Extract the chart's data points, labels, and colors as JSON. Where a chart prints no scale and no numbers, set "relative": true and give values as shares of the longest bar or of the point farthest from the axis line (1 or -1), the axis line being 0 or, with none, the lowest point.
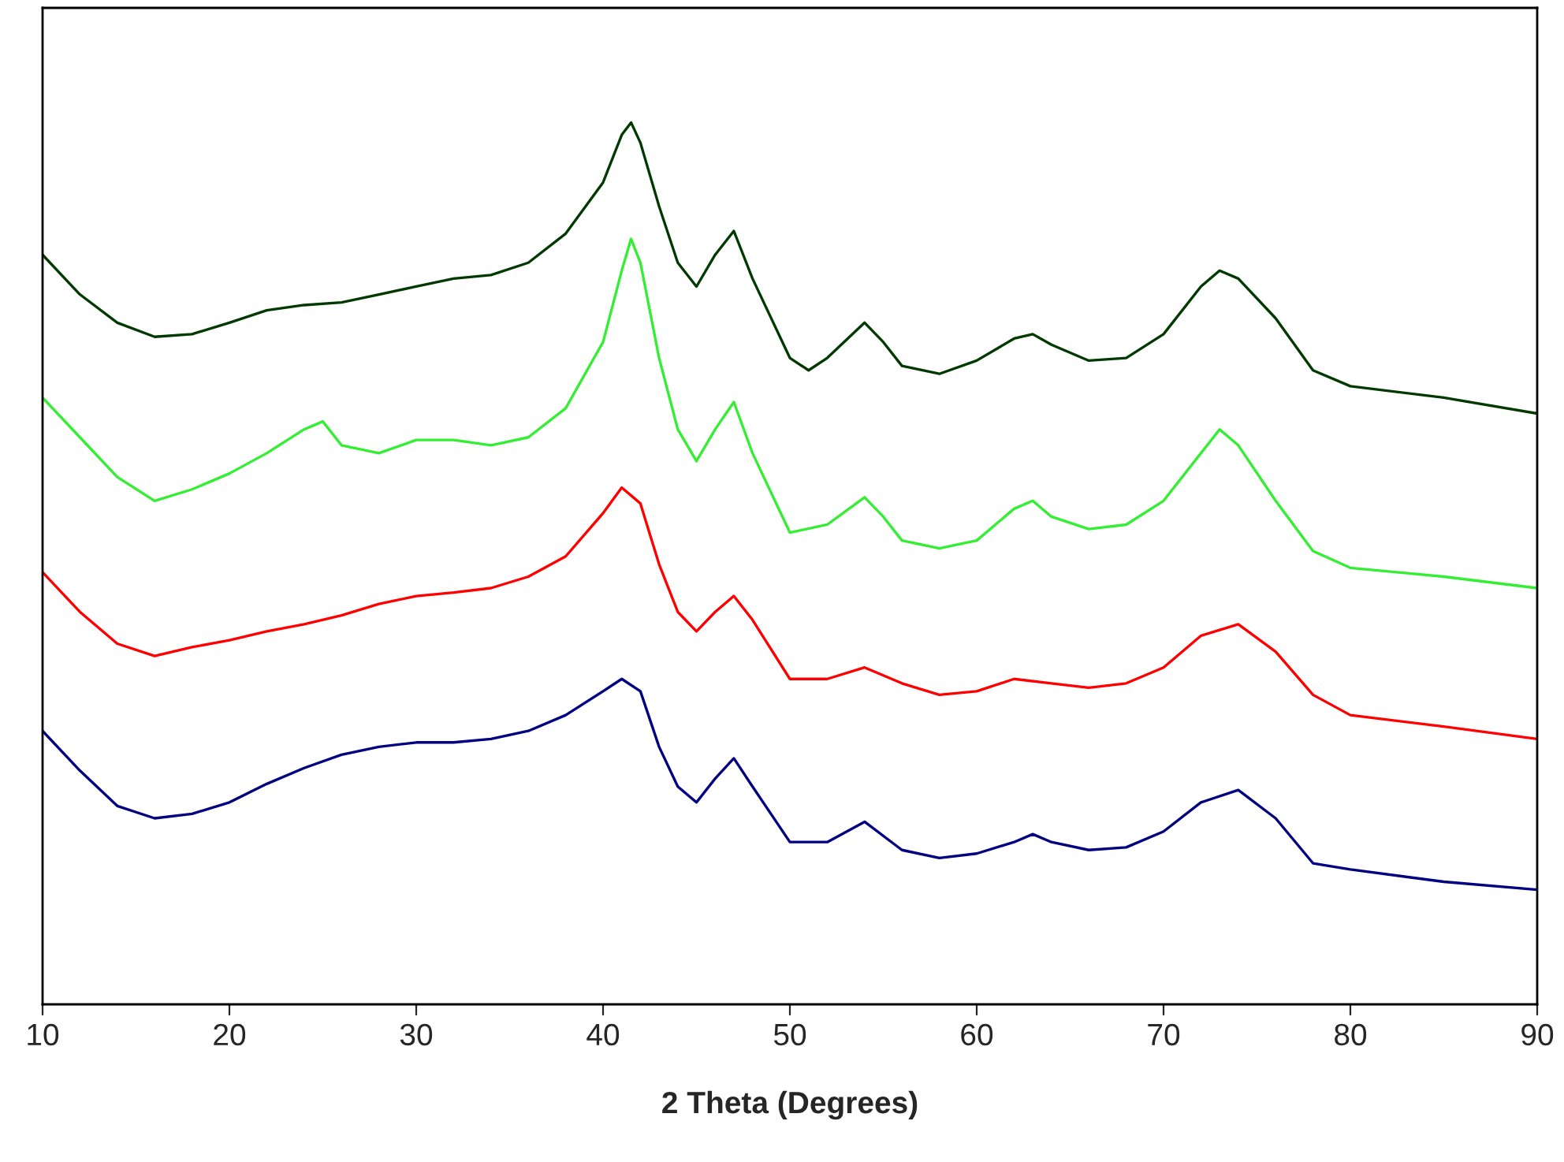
{
  "chart_data": {
    "type": "line",
    "relative": true,
    "xlabel": "2 Theta (Degrees)",
    "xlim": [
      10,
      90
    ],
    "xticks": [
      10,
      20,
      30,
      40,
      50,
      60,
      70,
      80,
      90
    ],
    "tick_labels": "x",
    "grid": false,
    "legend": false,
    "marker": "none",
    "line_style": "solid",
    "series": [
      {
        "color": "#013a01",
        "x": [
          10,
          12,
          14,
          16,
          18,
          20,
          22,
          24,
          26,
          28,
          30,
          32,
          34,
          36,
          38,
          40,
          41,
          41.5,
          42,
          43,
          44,
          45,
          46,
          47,
          48,
          50,
          51,
          52,
          54,
          55,
          56,
          58,
          60,
          62,
          63,
          64,
          66,
          68,
          70,
          72,
          73,
          74,
          76,
          78,
          80,
          85,
          90
        ],
        "values": [
          0.85,
          0.805,
          0.773,
          0.757,
          0.76,
          0.773,
          0.787,
          0.793,
          0.796,
          0.805,
          0.814,
          0.823,
          0.827,
          0.841,
          0.874,
          0.932,
          0.986,
          1.0,
          0.977,
          0.905,
          0.841,
          0.814,
          0.85,
          0.877,
          0.823,
          0.733,
          0.719,
          0.733,
          0.773,
          0.751,
          0.724,
          0.715,
          0.73,
          0.755,
          0.76,
          0.748,
          0.73,
          0.733,
          0.76,
          0.814,
          0.832,
          0.823,
          0.778,
          0.719,
          0.701,
          0.688,
          0.67
        ]
      },
      {
        "color": "#33ee33",
        "x": [
          10,
          12,
          14,
          16,
          18,
          20,
          22,
          24,
          25,
          26,
          28,
          30,
          32,
          34,
          36,
          38,
          40,
          41,
          41.5,
          42,
          43,
          44,
          45,
          46,
          47,
          48,
          50,
          52,
          54,
          55,
          56,
          58,
          60,
          62,
          63,
          64,
          66,
          68,
          70,
          72,
          73,
          74,
          76,
          78,
          80,
          85,
          90
        ],
        "values": [
          0.688,
          0.643,
          0.598,
          0.571,
          0.584,
          0.602,
          0.625,
          0.652,
          0.661,
          0.634,
          0.625,
          0.64,
          0.64,
          0.634,
          0.643,
          0.676,
          0.751,
          0.832,
          0.868,
          0.841,
          0.733,
          0.652,
          0.616,
          0.652,
          0.683,
          0.625,
          0.535,
          0.544,
          0.575,
          0.553,
          0.526,
          0.517,
          0.526,
          0.562,
          0.571,
          0.553,
          0.539,
          0.544,
          0.571,
          0.625,
          0.652,
          0.634,
          0.571,
          0.514,
          0.495,
          0.485,
          0.472
        ]
      },
      {
        "color": "#ff0000",
        "x": [
          10,
          12,
          14,
          16,
          18,
          20,
          22,
          24,
          26,
          28,
          30,
          32,
          34,
          36,
          38,
          40,
          41,
          42,
          43,
          44,
          45,
          46,
          47,
          48,
          50,
          52,
          54,
          56,
          58,
          60,
          62,
          64,
          66,
          68,
          70,
          72,
          74,
          76,
          78,
          80,
          85,
          90
        ],
        "values": [
          0.49,
          0.445,
          0.409,
          0.395,
          0.405,
          0.413,
          0.423,
          0.431,
          0.441,
          0.454,
          0.463,
          0.467,
          0.472,
          0.485,
          0.508,
          0.557,
          0.586,
          0.568,
          0.499,
          0.445,
          0.423,
          0.445,
          0.463,
          0.436,
          0.369,
          0.369,
          0.382,
          0.364,
          0.351,
          0.355,
          0.369,
          0.364,
          0.359,
          0.364,
          0.382,
          0.418,
          0.431,
          0.4,
          0.351,
          0.328,
          0.315,
          0.301
        ]
      },
      {
        "color": "#000080",
        "x": [
          10,
          12,
          14,
          16,
          18,
          20,
          22,
          24,
          26,
          28,
          30,
          32,
          34,
          36,
          38,
          40,
          41,
          42,
          43,
          44,
          45,
          46,
          47,
          48,
          50,
          52,
          54,
          56,
          58,
          60,
          62,
          63,
          64,
          66,
          68,
          70,
          72,
          74,
          76,
          78,
          80,
          85,
          90
        ],
        "values": [
          0.31,
          0.265,
          0.225,
          0.211,
          0.216,
          0.229,
          0.25,
          0.268,
          0.283,
          0.292,
          0.297,
          0.297,
          0.301,
          0.31,
          0.328,
          0.355,
          0.369,
          0.355,
          0.292,
          0.247,
          0.229,
          0.256,
          0.279,
          0.247,
          0.184,
          0.184,
          0.207,
          0.175,
          0.166,
          0.171,
          0.184,
          0.193,
          0.184,
          0.175,
          0.178,
          0.196,
          0.229,
          0.243,
          0.211,
          0.16,
          0.153,
          0.139,
          0.13
        ]
      }
    ]
  }
}
